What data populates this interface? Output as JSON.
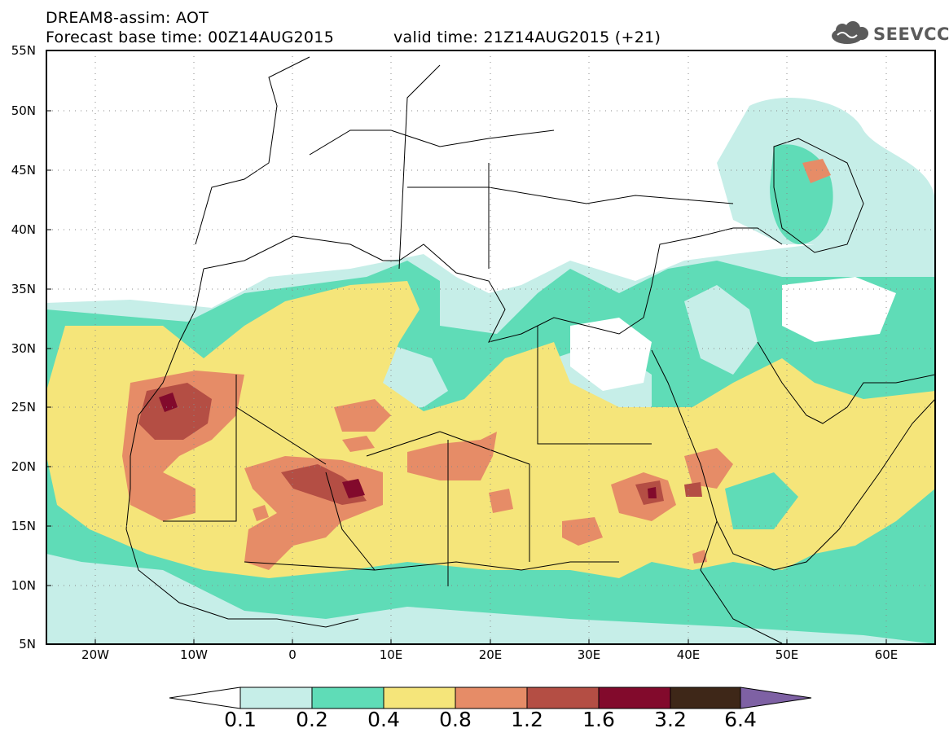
{
  "header": {
    "title": "DREAM8-assim: AOT",
    "base_time": "Forecast base time: 00Z14AUG2015",
    "valid_time": "valid time: 21Z14AUG2015 (+21)"
  },
  "logo": {
    "text": "SEEVCCC",
    "icon": "cloud-icon",
    "color": "#5b5b5b"
  },
  "map": {
    "variable": "AOT",
    "lon_range": [
      -25,
      65
    ],
    "lat_range": [
      5,
      55
    ],
    "grid": "dotted",
    "lat_ticks": [
      "55N",
      "50N",
      "45N",
      "40N",
      "35N",
      "30N",
      "25N",
      "20N",
      "15N",
      "10N",
      "5N"
    ],
    "lon_ticks": [
      "20W",
      "10W",
      "0",
      "10E",
      "20E",
      "30E",
      "40E",
      "50E",
      "60E"
    ]
  },
  "colorbar": {
    "labels": [
      "0.1",
      "0.2",
      "0.4",
      "0.8",
      "1.2",
      "1.6",
      "3.2",
      "6.4"
    ],
    "colors": [
      "#ffffff",
      "#c6eee8",
      "#5fdcb7",
      "#f5e57a",
      "#e68c67",
      "#b44e44",
      "#820a2c",
      "#3e2718",
      "#7e61a4"
    ],
    "extend": "both"
  }
}
